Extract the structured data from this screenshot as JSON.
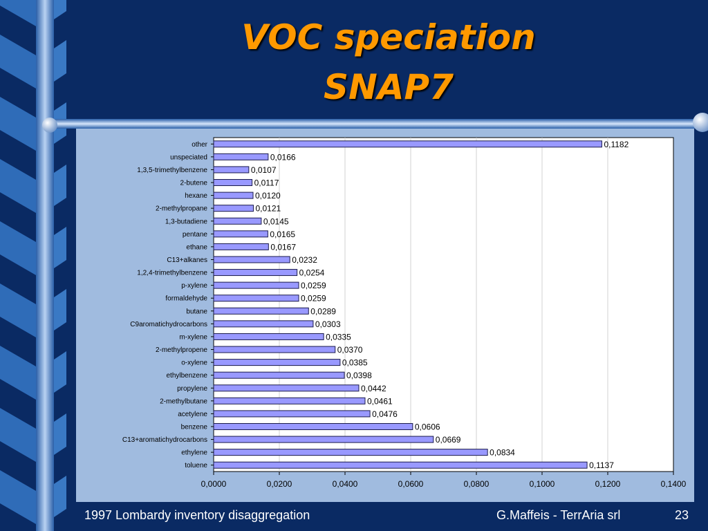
{
  "slide": {
    "title_line1": "VOC speciation",
    "title_line2": "SNAP7",
    "footer_left": "1997 Lombardy inventory disaggregation",
    "footer_right": "G.Maffeis - TerrAria srl",
    "page_number": "23"
  },
  "colors": {
    "background": "#0a2a63",
    "title": "#ff9900",
    "panel": "#a0bbdf",
    "bar_fill": "#9999ff",
    "bar_stroke": "#1a1a4a"
  },
  "chart_data": {
    "type": "bar",
    "orientation": "horizontal",
    "title": "",
    "xlabel": "",
    "ylabel": "",
    "xlim": [
      0,
      0.14
    ],
    "x_ticks": [
      "0,0000",
      "0,0200",
      "0,0400",
      "0,0600",
      "0,0800",
      "0,1000",
      "0,1200",
      "0,1400"
    ],
    "grid": true,
    "legend": "none",
    "categories": [
      "other",
      "unspeciated",
      "1,3,5-trimethylbenzene",
      "2-butene",
      "hexane",
      "2-methylpropane",
      "1,3-butadiene",
      "pentane",
      "ethane",
      "C13+alkanes",
      "1,2,4-trimethylbenzene",
      "p-xylene",
      "formaldehyde",
      "butane",
      "C9aromatichydrocarbons",
      "m-xylene",
      "2-methylpropene",
      "o-xylene",
      "ethylbenzene",
      "propylene",
      "2-methylbutane",
      "acetylene",
      "benzene",
      "C13+aromatichydrocarbons",
      "ethylene",
      "toluene"
    ],
    "values": [
      0.1182,
      0.0166,
      0.0107,
      0.0117,
      0.012,
      0.0121,
      0.0145,
      0.0165,
      0.0167,
      0.0232,
      0.0254,
      0.0259,
      0.0259,
      0.0289,
      0.0303,
      0.0335,
      0.037,
      0.0385,
      0.0398,
      0.0442,
      0.0461,
      0.0476,
      0.0606,
      0.0669,
      0.0834,
      0.1137
    ],
    "value_labels": [
      "0,1182",
      "0,0166",
      "0,0107",
      "0,0117",
      "0,0120",
      "0,0121",
      "0,0145",
      "0,0165",
      "0,0167",
      "0,0232",
      "0,0254",
      "0,0259",
      "0,0259",
      "0,0289",
      "0,0303",
      "0,0335",
      "0,0370",
      "0,0385",
      "0,0398",
      "0,0442",
      "0,0461",
      "0,0476",
      "0,0606",
      "0,0669",
      "0,0834",
      "0,1137"
    ]
  }
}
